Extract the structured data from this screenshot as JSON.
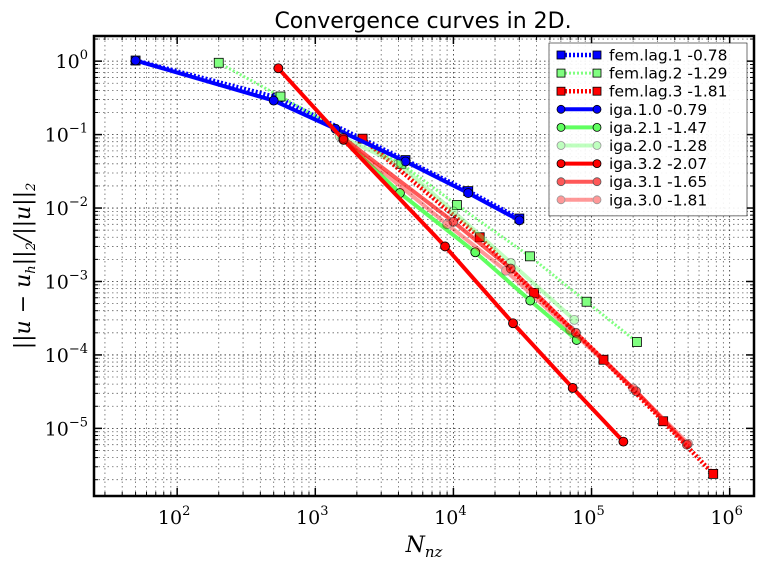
{
  "chart_data": {
    "type": "line",
    "title": "Convergence curves in 2D.",
    "xlabel": "N_nz",
    "ylabel": "||u − u_h||_2/||u||_2",
    "x_scale": "log",
    "y_scale": "log",
    "xlim": [
      25,
      1500000
    ],
    "ylim": [
      1.2e-06,
      2.2
    ],
    "grid": true,
    "legend_position": "top-right",
    "x_ticks": [
      {
        "value": 100,
        "base": "10",
        "exp": "2"
      },
      {
        "value": 1000,
        "base": "10",
        "exp": "3"
      },
      {
        "value": 10000,
        "base": "10",
        "exp": "4"
      },
      {
        "value": 100000,
        "base": "10",
        "exp": "5"
      },
      {
        "value": 1000000,
        "base": "10",
        "exp": "6"
      }
    ],
    "y_ticks": [
      {
        "value": 1,
        "base": "10",
        "exp": "0"
      },
      {
        "value": 0.1,
        "base": "10",
        "exp": "−1"
      },
      {
        "value": 0.01,
        "base": "10",
        "exp": "−2"
      },
      {
        "value": 0.001,
        "base": "10",
        "exp": "−3"
      },
      {
        "value": 0.0001,
        "base": "10",
        "exp": "−4"
      },
      {
        "value": 1e-05,
        "base": "10",
        "exp": "−5"
      }
    ],
    "series": [
      {
        "name": "fem.lag.1 -0.78",
        "color": "#0000ff",
        "marker": "square",
        "dash": "dotted",
        "width": 4.5,
        "opacity": 1,
        "x": [
          50,
          530,
          4500,
          12800,
          30000
        ],
        "y": [
          1.02,
          0.32,
          0.045,
          0.017,
          0.0072
        ]
      },
      {
        "name": "fem.lag.2 -1.29",
        "color": "#80ff80",
        "marker": "square",
        "dash": "dotted",
        "width": 3,
        "opacity": 1,
        "x": [
          200,
          560,
          4200,
          10600,
          35800,
          92000,
          213000
        ],
        "y": [
          0.95,
          0.33,
          0.04,
          0.011,
          0.0022,
          0.00053,
          0.00015
        ]
      },
      {
        "name": "fem.lag.3 -1.81",
        "color": "#ff0000",
        "marker": "square",
        "dash": "dotted",
        "width": 4.5,
        "opacity": 1,
        "x": [
          2200,
          15500,
          38400,
          122000,
          330000,
          760000
        ],
        "y": [
          0.088,
          0.004,
          0.0007,
          8.6e-05,
          1.25e-05,
          2.4e-06
        ]
      },
      {
        "name": "iga.1.0 -0.79",
        "color": "#0000ff",
        "marker": "circle",
        "dash": "solid",
        "width": 4,
        "opacity": 1,
        "x": [
          50,
          500,
          1400,
          4500,
          12800,
          30000
        ],
        "y": [
          1.02,
          0.29,
          0.12,
          0.043,
          0.016,
          0.0068
        ]
      },
      {
        "name": "iga.2.1 -1.47",
        "color": "#60ff60",
        "marker": "circle",
        "dash": "solid",
        "width": 4,
        "opacity": 1,
        "x": [
          1600,
          4100,
          14400,
          36000,
          78000
        ],
        "y": [
          0.085,
          0.016,
          0.0025,
          0.00055,
          0.00016
        ]
      },
      {
        "name": "iga.2.0 -1.28",
        "color": "#60ff60",
        "marker": "circle",
        "dash": "solid",
        "width": 4,
        "opacity": 0.4,
        "x": [
          1500,
          4000,
          10000,
          26000,
          75000
        ],
        "y": [
          0.095,
          0.04,
          0.009,
          0.0018,
          0.0003
        ]
      },
      {
        "name": "iga.3.2 -2.07",
        "color": "#ff0000",
        "marker": "circle",
        "dash": "solid",
        "width": 4,
        "opacity": 1,
        "x": [
          540,
          1600,
          8700,
          27000,
          73000,
          170000
        ],
        "y": [
          0.8,
          0.085,
          0.003,
          0.00027,
          3.55e-05,
          6.6e-06
        ]
      },
      {
        "name": "iga.3.1 -1.65",
        "color": "#ff0000",
        "marker": "circle",
        "dash": "solid",
        "width": 4,
        "opacity": 0.65,
        "x": [
          1600,
          10000,
          26000,
          77000,
          210000,
          490000
        ],
        "y": [
          0.09,
          0.0065,
          0.0015,
          0.0002,
          3.2e-05,
          6e-06
        ]
      },
      {
        "name": "iga.3.0 -1.81",
        "color": "#ff0000",
        "marker": "circle",
        "dash": "solid",
        "width": 4,
        "opacity": 0.4,
        "x": [
          1600,
          9000,
          24000,
          70000,
          200000,
          500000
        ],
        "y": [
          0.085,
          0.006,
          0.0014,
          0.00022,
          3.5e-05,
          6.2e-06
        ]
      }
    ]
  }
}
